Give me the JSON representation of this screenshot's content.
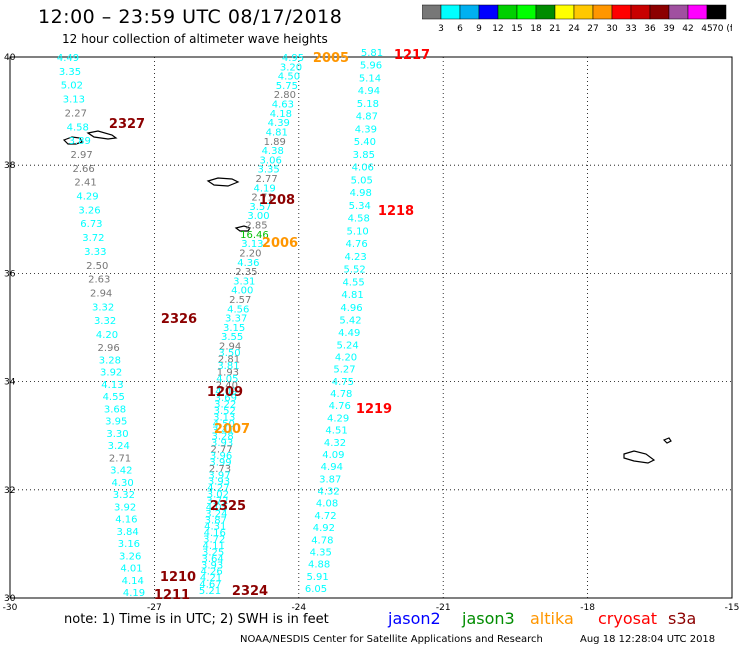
{
  "header": {
    "title": "12:00 – 23:59 UTC 08/17/2018",
    "subtitle": "12 hour collection of altimeter wave heights"
  },
  "colorbar": {
    "colors": [
      "#777777",
      "#00ffff",
      "#00b0f0",
      "#0000ff",
      "#00d000",
      "#00ff00",
      "#008c00",
      "#ffff00",
      "#ffc800",
      "#ff9600",
      "#ff0000",
      "#c80000",
      "#8c0000",
      "#a050a0",
      "#ff00ff",
      "#000000"
    ],
    "labels": [
      "3",
      "6",
      "9",
      "12",
      "15",
      "18",
      "21",
      "24",
      "27",
      "30",
      "33",
      "36",
      "39",
      "42",
      "45",
      "70 (ft)"
    ]
  },
  "axes": {
    "x_ticks": [
      "-30",
      "-27",
      "-24",
      "-21",
      "-18",
      "-15"
    ],
    "y_ticks": [
      "40",
      "38",
      "36",
      "34",
      "32",
      "30"
    ]
  },
  "pass_labels": [
    {
      "text": "2327",
      "color": "#8c0000"
    },
    {
      "text": "2005",
      "color": "#ff9600"
    },
    {
      "text": "1217",
      "color": "#ff0000"
    },
    {
      "text": "1208",
      "color": "#8c0000"
    },
    {
      "text": "1218",
      "color": "#ff0000"
    },
    {
      "text": "2006",
      "color": "#ff9600"
    },
    {
      "text": "2326",
      "color": "#8c0000"
    },
    {
      "text": "1209",
      "color": "#8c0000"
    },
    {
      "text": "1219",
      "color": "#ff0000"
    },
    {
      "text": "2007",
      "color": "#ff9600"
    },
    {
      "text": "2325",
      "color": "#8c0000"
    },
    {
      "text": "1210",
      "color": "#8c0000"
    },
    {
      "text": "1211",
      "color": "#8c0000"
    },
    {
      "text": "2324",
      "color": "#8c0000"
    }
  ],
  "tracks": {
    "west_track": {
      "color": "#00ffff",
      "values": [
        "4.49",
        "3.35",
        "5.02",
        "3.13",
        "2.27",
        "4.58",
        "3.89",
        "2.97",
        "2.66",
        "2.41",
        "4.29",
        "3.26",
        "6.73",
        "3.72",
        "3.33",
        "2.50",
        "2.63",
        "2.94",
        "3.32",
        "3.32",
        "4.20",
        "2.96",
        "3.28",
        "3.92",
        "4.13",
        "4.55",
        "3.68",
        "3.95",
        "3.30",
        "3.24",
        "2.71",
        "3.42",
        "4.30",
        "3.32",
        "3.92",
        "4.16",
        "3.84",
        "3.16",
        "3.26",
        "4.01",
        "4.14",
        "4.19"
      ]
    },
    "middle_track": {
      "color": "#00ffff",
      "values": [
        "4.95",
        "3.20",
        "4.50",
        "5.75",
        "2.80",
        "4.63",
        "4.18",
        "4.39",
        "4.81",
        "1.89",
        "4.38",
        "3.06",
        "3.35",
        "2.77",
        "4.19",
        "2.71",
        "3.57",
        "3.00",
        "2.85",
        "16.46",
        "3.13",
        "2.20",
        "4.36",
        "2.35",
        "3.31",
        "4.00",
        "2.57",
        "4.56",
        "3.37",
        "3.15",
        "3.55",
        "2.94",
        "3.50",
        "2.81",
        "3.81",
        "1.93",
        "4.05",
        "2.40",
        "4.09",
        "3.69",
        "3.22",
        "3.52",
        "3.13",
        "4.50",
        "3.41",
        "3.28",
        "3.93",
        "2.77",
        "3.96",
        "3.99",
        "2.73",
        "3.97",
        "3.93",
        "4.27",
        "3.02",
        "3.72",
        "4.05",
        "3.24",
        "3.87",
        "4.31",
        "4.16",
        "3.72",
        "4.11",
        "3.25",
        "3.64",
        "3.93",
        "4.26",
        "4.21",
        "4.67",
        "5.21"
      ]
    },
    "east_track": {
      "color": "#00ffff",
      "values": [
        "5.81",
        "5.96",
        "5.14",
        "4.94",
        "5.18",
        "4.87",
        "4.39",
        "5.40",
        "3.85",
        "4.06",
        "5.05",
        "4.98",
        "5.34",
        "4.58",
        "5.10",
        "4.76",
        "4.23",
        "5.52",
        "4.55",
        "4.81",
        "4.96",
        "5.42",
        "4.49",
        "5.24",
        "4.20",
        "5.27",
        "4.75",
        "4.78",
        "4.76",
        "4.29",
        "4.51",
        "4.32",
        "4.09",
        "4.94",
        "3.87",
        "4.32",
        "4.08",
        "4.72",
        "4.92",
        "4.78",
        "4.35",
        "4.88",
        "5.91",
        "6.05"
      ]
    }
  },
  "footer": {
    "note": "note: 1) Time is in UTC; 2) SWH is in feet",
    "satellites": [
      {
        "name": "jason2",
        "color": "#0000ff"
      },
      {
        "name": "jason3",
        "color": "#008c00"
      },
      {
        "name": "altika",
        "color": "#ff9600"
      },
      {
        "name": "cryosat",
        "color": "#ff0000"
      },
      {
        "name": "s3a",
        "color": "#8c0000"
      }
    ],
    "credit": "NOAA/NESDIS Center for Satellite Applications and Research",
    "timestamp": "Aug 18 12:28:04 UTC 2018"
  }
}
